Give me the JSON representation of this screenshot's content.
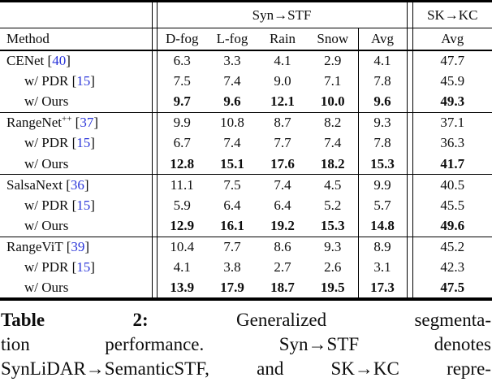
{
  "colors": {
    "citation_blue": "#2b36d9",
    "text": "#0d0d0d",
    "rule": "#000000"
  },
  "table": {
    "group_headers": [
      {
        "label": "Syn→STF"
      },
      {
        "label": "SK→KC"
      }
    ],
    "column_headers": {
      "method": "Method",
      "sub": [
        "D-fog",
        "L-fog",
        "Rain",
        "Snow",
        "Avg"
      ],
      "right_avg": "Avg"
    },
    "groups": [
      {
        "rows": [
          {
            "method": "CENet",
            "sup": "",
            "cite": "40",
            "indent": false,
            "bold": false,
            "values": [
              "6.3",
              "3.3",
              "4.1",
              "2.9",
              "4.1",
              "47.7"
            ]
          },
          {
            "method": "w/ PDR",
            "sup": "",
            "cite": "15",
            "indent": true,
            "bold": false,
            "values": [
              "7.5",
              "7.4",
              "9.0",
              "7.1",
              "7.8",
              "45.9"
            ]
          },
          {
            "method": "w/ Ours",
            "sup": "",
            "cite": "",
            "indent": true,
            "bold": true,
            "values": [
              "9.7",
              "9.6",
              "12.1",
              "10.0",
              "9.6",
              "49.3"
            ]
          }
        ]
      },
      {
        "rows": [
          {
            "method": "RangeNet",
            "sup": "++",
            "cite": "37",
            "indent": false,
            "bold": false,
            "values": [
              "9.9",
              "10.8",
              "8.7",
              "8.2",
              "9.3",
              "37.1"
            ]
          },
          {
            "method": "w/ PDR",
            "sup": "",
            "cite": "15",
            "indent": true,
            "bold": false,
            "values": [
              "6.7",
              "7.4",
              "7.7",
              "7.4",
              "7.8",
              "36.3"
            ]
          },
          {
            "method": "w/ Ours",
            "sup": "",
            "cite": "",
            "indent": true,
            "bold": true,
            "values": [
              "12.8",
              "15.1",
              "17.6",
              "18.2",
              "15.3",
              "41.7"
            ]
          }
        ]
      },
      {
        "rows": [
          {
            "method": "SalsaNext",
            "sup": "",
            "cite": "36",
            "indent": false,
            "bold": false,
            "values": [
              "11.1",
              "7.5",
              "7.4",
              "4.5",
              "9.9",
              "40.5"
            ]
          },
          {
            "method": "w/ PDR",
            "sup": "",
            "cite": "15",
            "indent": true,
            "bold": false,
            "values": [
              "5.9",
              "6.4",
              "6.4",
              "5.2",
              "5.7",
              "45.5"
            ]
          },
          {
            "method": "w/ Ours",
            "sup": "",
            "cite": "",
            "indent": true,
            "bold": true,
            "values": [
              "12.9",
              "16.1",
              "19.2",
              "15.3",
              "14.8",
              "49.6"
            ]
          }
        ]
      },
      {
        "rows": [
          {
            "method": "RangeViT",
            "sup": "",
            "cite": "39",
            "indent": false,
            "bold": false,
            "values": [
              "10.4",
              "7.7",
              "8.6",
              "9.3",
              "8.9",
              "45.2"
            ]
          },
          {
            "method": "w/ PDR",
            "sup": "",
            "cite": "15",
            "indent": true,
            "bold": false,
            "values": [
              "4.1",
              "3.8",
              "2.7",
              "2.6",
              "3.1",
              "42.3"
            ]
          },
          {
            "method": "w/ Ours",
            "sup": "",
            "cite": "",
            "indent": true,
            "bold": true,
            "values": [
              "13.9",
              "17.9",
              "18.7",
              "19.5",
              "17.3",
              "47.5"
            ]
          }
        ]
      }
    ]
  },
  "caption": {
    "lines": [
      [
        {
          "text": "Table",
          "bold": true
        },
        {
          "text": "2:",
          "bold": true
        },
        {
          "text": "Generalized",
          "bold": false
        },
        {
          "text": "segmenta-",
          "bold": false
        }
      ],
      [
        {
          "text": "tion",
          "bold": false
        },
        {
          "text": "performance.",
          "bold": false
        },
        {
          "text": "Syn→STF",
          "bold": false
        },
        {
          "text": "denotes",
          "bold": false
        }
      ],
      [
        {
          "text": "SynLiDAR→SemanticSTF,",
          "bold": false
        },
        {
          "text": "and",
          "bold": false
        },
        {
          "text": "SK→KC",
          "bold": false
        },
        {
          "text": "repre-",
          "bold": false
        }
      ]
    ]
  }
}
